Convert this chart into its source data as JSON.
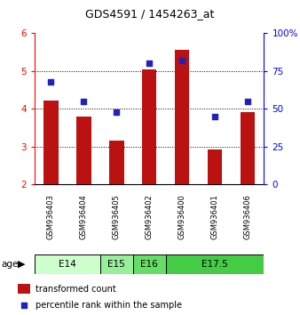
{
  "title": "GDS4591 / 1454263_at",
  "samples": [
    "GSM936403",
    "GSM936404",
    "GSM936405",
    "GSM936402",
    "GSM936400",
    "GSM936401",
    "GSM936406"
  ],
  "bar_values": [
    4.22,
    3.78,
    3.15,
    5.03,
    5.55,
    2.93,
    3.9
  ],
  "percentile_values": [
    68,
    55,
    48,
    80,
    82,
    45,
    55
  ],
  "bar_color": "#bb1111",
  "dot_color": "#2222bb",
  "ylim_left": [
    2,
    6
  ],
  "ylim_right": [
    0,
    100
  ],
  "yticks_left": [
    2,
    3,
    4,
    5,
    6
  ],
  "yticks_right": [
    0,
    25,
    50,
    75,
    100
  ],
  "ytick_labels_right": [
    "0",
    "25",
    "50",
    "75",
    "100%"
  ],
  "age_groups": [
    {
      "label": "E14",
      "start": 0,
      "end": 2,
      "color": "#ccffcc"
    },
    {
      "label": "E15",
      "start": 2,
      "end": 3,
      "color": "#99ee99"
    },
    {
      "label": "E16",
      "start": 3,
      "end": 4,
      "color": "#66dd66"
    },
    {
      "label": "E17.5",
      "start": 4,
      "end": 7,
      "color": "#44cc44"
    }
  ],
  "legend_bar_label": "transformed count",
  "legend_dot_label": "percentile rank within the sample",
  "background_color": "#ffffff"
}
